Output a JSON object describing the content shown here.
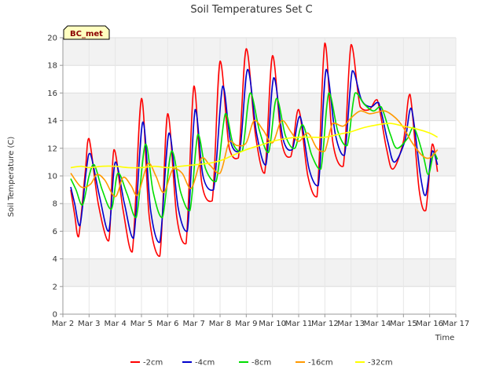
{
  "chart_data": {
    "type": "line",
    "title": "Soil Temperatures Set C",
    "xlabel": "Time",
    "ylabel": "Soil Temperature (C)",
    "badge": "BC_met",
    "xlim": [
      2,
      17
    ],
    "ylim": [
      0,
      20
    ],
    "yticks": [
      0,
      2,
      4,
      6,
      8,
      10,
      12,
      14,
      16,
      18,
      20
    ],
    "xticks": [
      {
        "x": 2,
        "label": "Mar 2"
      },
      {
        "x": 3,
        "label": "Mar 3"
      },
      {
        "x": 4,
        "label": "Mar 4"
      },
      {
        "x": 5,
        "label": "Mar 5"
      },
      {
        "x": 6,
        "label": "Mar 6"
      },
      {
        "x": 7,
        "label": "Mar 7"
      },
      {
        "x": 8,
        "label": "Mar 8"
      },
      {
        "x": 9,
        "label": "Mar 9"
      },
      {
        "x": 10,
        "label": "Mar 10"
      },
      {
        "x": 11,
        "label": "Mar 11"
      },
      {
        "x": 12,
        "label": "Mar 12"
      },
      {
        "x": 13,
        "label": "Mar 13"
      },
      {
        "x": 14,
        "label": "Mar 14"
      },
      {
        "x": 15,
        "label": "Mar 15"
      },
      {
        "x": 16,
        "label": "Mar 16"
      },
      {
        "x": 17,
        "label": "Mar 17"
      }
    ],
    "grid": true,
    "legend_position": "bottom",
    "series": [
      {
        "name": "-2cm",
        "color": "#ff0000",
        "x": [
          2.3,
          2.45,
          2.6,
          2.85,
          3.0,
          3.35,
          3.75,
          3.95,
          4.3,
          4.65,
          5.0,
          5.3,
          5.7,
          6.0,
          6.35,
          6.7,
          7.0,
          7.3,
          7.7,
          8.0,
          8.35,
          8.7,
          9.0,
          9.35,
          9.7,
          10.0,
          10.35,
          10.7,
          11.0,
          11.35,
          11.7,
          12.0,
          12.3,
          12.7,
          13.0,
          13.35,
          13.7,
          14.0,
          14.35,
          14.6,
          15.0,
          15.25,
          15.6,
          15.85,
          16.1,
          16.3
        ],
        "y": [
          9.0,
          7.2,
          5.6,
          10.2,
          12.7,
          8.0,
          5.3,
          11.9,
          7.5,
          4.5,
          15.6,
          7.0,
          4.2,
          14.5,
          7.0,
          5.1,
          16.5,
          9.5,
          8.2,
          18.3,
          12.0,
          11.3,
          19.2,
          13.0,
          10.2,
          18.7,
          12.5,
          11.4,
          14.8,
          10.0,
          8.5,
          19.6,
          12.5,
          10.7,
          19.5,
          15.0,
          14.8,
          15.5,
          12.0,
          10.5,
          12.5,
          15.9,
          9.0,
          7.5,
          12.3,
          10.3
        ]
      },
      {
        "name": "-4cm",
        "color": "#0000cc",
        "x": [
          2.3,
          2.45,
          2.65,
          2.9,
          3.05,
          3.4,
          3.75,
          4.0,
          4.35,
          4.7,
          5.05,
          5.35,
          5.7,
          6.05,
          6.4,
          6.75,
          7.05,
          7.35,
          7.75,
          8.1,
          8.4,
          8.75,
          9.05,
          9.4,
          9.75,
          10.05,
          10.4,
          10.75,
          11.05,
          11.4,
          11.75,
          12.05,
          12.4,
          12.75,
          13.05,
          13.4,
          13.75,
          14.05,
          14.4,
          14.65,
          15.05,
          15.3,
          15.65,
          15.85,
          16.1,
          16.3
        ],
        "y": [
          9.2,
          8.0,
          6.4,
          10.5,
          11.6,
          8.5,
          6.0,
          11.0,
          8.0,
          5.5,
          13.9,
          7.5,
          5.2,
          13.1,
          7.7,
          6.0,
          14.8,
          10.0,
          9.0,
          16.5,
          12.5,
          11.8,
          17.7,
          13.0,
          10.8,
          17.1,
          12.7,
          11.9,
          14.3,
          10.5,
          9.3,
          17.7,
          13.0,
          11.5,
          17.6,
          15.5,
          15.0,
          15.3,
          12.5,
          11.0,
          12.5,
          14.9,
          10.0,
          8.6,
          11.8,
          10.8
        ]
      },
      {
        "name": "-8cm",
        "color": "#00dd00",
        "x": [
          2.3,
          2.5,
          2.75,
          3.0,
          3.2,
          3.5,
          3.85,
          4.1,
          4.45,
          4.8,
          5.15,
          5.45,
          5.8,
          6.15,
          6.5,
          6.85,
          7.15,
          7.45,
          7.85,
          8.2,
          8.5,
          8.85,
          9.15,
          9.5,
          9.85,
          10.15,
          10.5,
          10.85,
          11.15,
          11.5,
          11.85,
          12.15,
          12.5,
          12.85,
          13.15,
          13.5,
          13.85,
          14.15,
          14.5,
          14.75,
          15.15,
          15.4,
          15.75,
          15.95,
          16.15,
          16.3
        ],
        "y": [
          9.8,
          9.0,
          7.9,
          10.0,
          10.8,
          9.0,
          7.6,
          10.2,
          8.7,
          7.0,
          12.3,
          8.8,
          7.0,
          11.8,
          8.8,
          7.5,
          13.0,
          10.5,
          9.6,
          14.5,
          12.3,
          11.8,
          16.0,
          13.3,
          11.7,
          15.6,
          12.9,
          12.0,
          13.7,
          11.5,
          10.5,
          16.0,
          13.2,
          12.2,
          16.0,
          15.2,
          14.7,
          15.0,
          13.0,
          12.0,
          12.7,
          13.5,
          11.5,
          10.1,
          11.6,
          11.2
        ]
      },
      {
        "name": "-16cm",
        "color": "#ff9900",
        "x": [
          2.3,
          2.7,
          3.05,
          3.3,
          3.6,
          4.0,
          4.3,
          4.6,
          4.85,
          5.25,
          5.55,
          5.85,
          6.2,
          6.55,
          6.9,
          7.3,
          7.6,
          8.0,
          8.35,
          8.65,
          9.0,
          9.3,
          9.65,
          10.0,
          10.35,
          10.7,
          11.0,
          11.35,
          11.7,
          12.0,
          12.3,
          12.7,
          13.0,
          13.35,
          13.7,
          14.0,
          14.3,
          14.7,
          15.0,
          15.3,
          15.7,
          16.0,
          16.3
        ],
        "y": [
          10.2,
          9.2,
          9.4,
          10.1,
          9.7,
          8.5,
          9.9,
          9.3,
          8.6,
          10.9,
          10.0,
          8.8,
          10.5,
          10.2,
          9.1,
          11.3,
          10.8,
          10.2,
          12.5,
          12.2,
          12.4,
          14.0,
          13.3,
          12.4,
          14.0,
          13.2,
          12.5,
          13.1,
          12.0,
          11.8,
          13.8,
          13.6,
          14.2,
          14.7,
          14.5,
          14.6,
          14.7,
          14.2,
          13.5,
          12.5,
          11.5,
          11.3,
          11.9
        ]
      },
      {
        "name": "-32cm",
        "color": "#ffff00",
        "x": [
          2.3,
          2.7,
          3.0,
          3.5,
          4.0,
          4.5,
          5.0,
          5.5,
          6.0,
          6.5,
          7.0,
          7.5,
          8.0,
          8.5,
          9.0,
          9.5,
          10.0,
          10.5,
          11.0,
          11.5,
          12.0,
          12.5,
          13.0,
          13.5,
          14.0,
          14.5,
          15.0,
          15.5,
          16.0,
          16.3
        ],
        "y": [
          10.6,
          10.7,
          10.6,
          10.7,
          10.7,
          10.6,
          10.6,
          10.7,
          10.6,
          10.7,
          10.8,
          10.9,
          11.1,
          11.5,
          11.9,
          12.2,
          12.5,
          12.7,
          12.8,
          12.8,
          12.8,
          13.0,
          13.2,
          13.5,
          13.7,
          13.8,
          13.6,
          13.4,
          13.1,
          12.8
        ]
      }
    ]
  }
}
